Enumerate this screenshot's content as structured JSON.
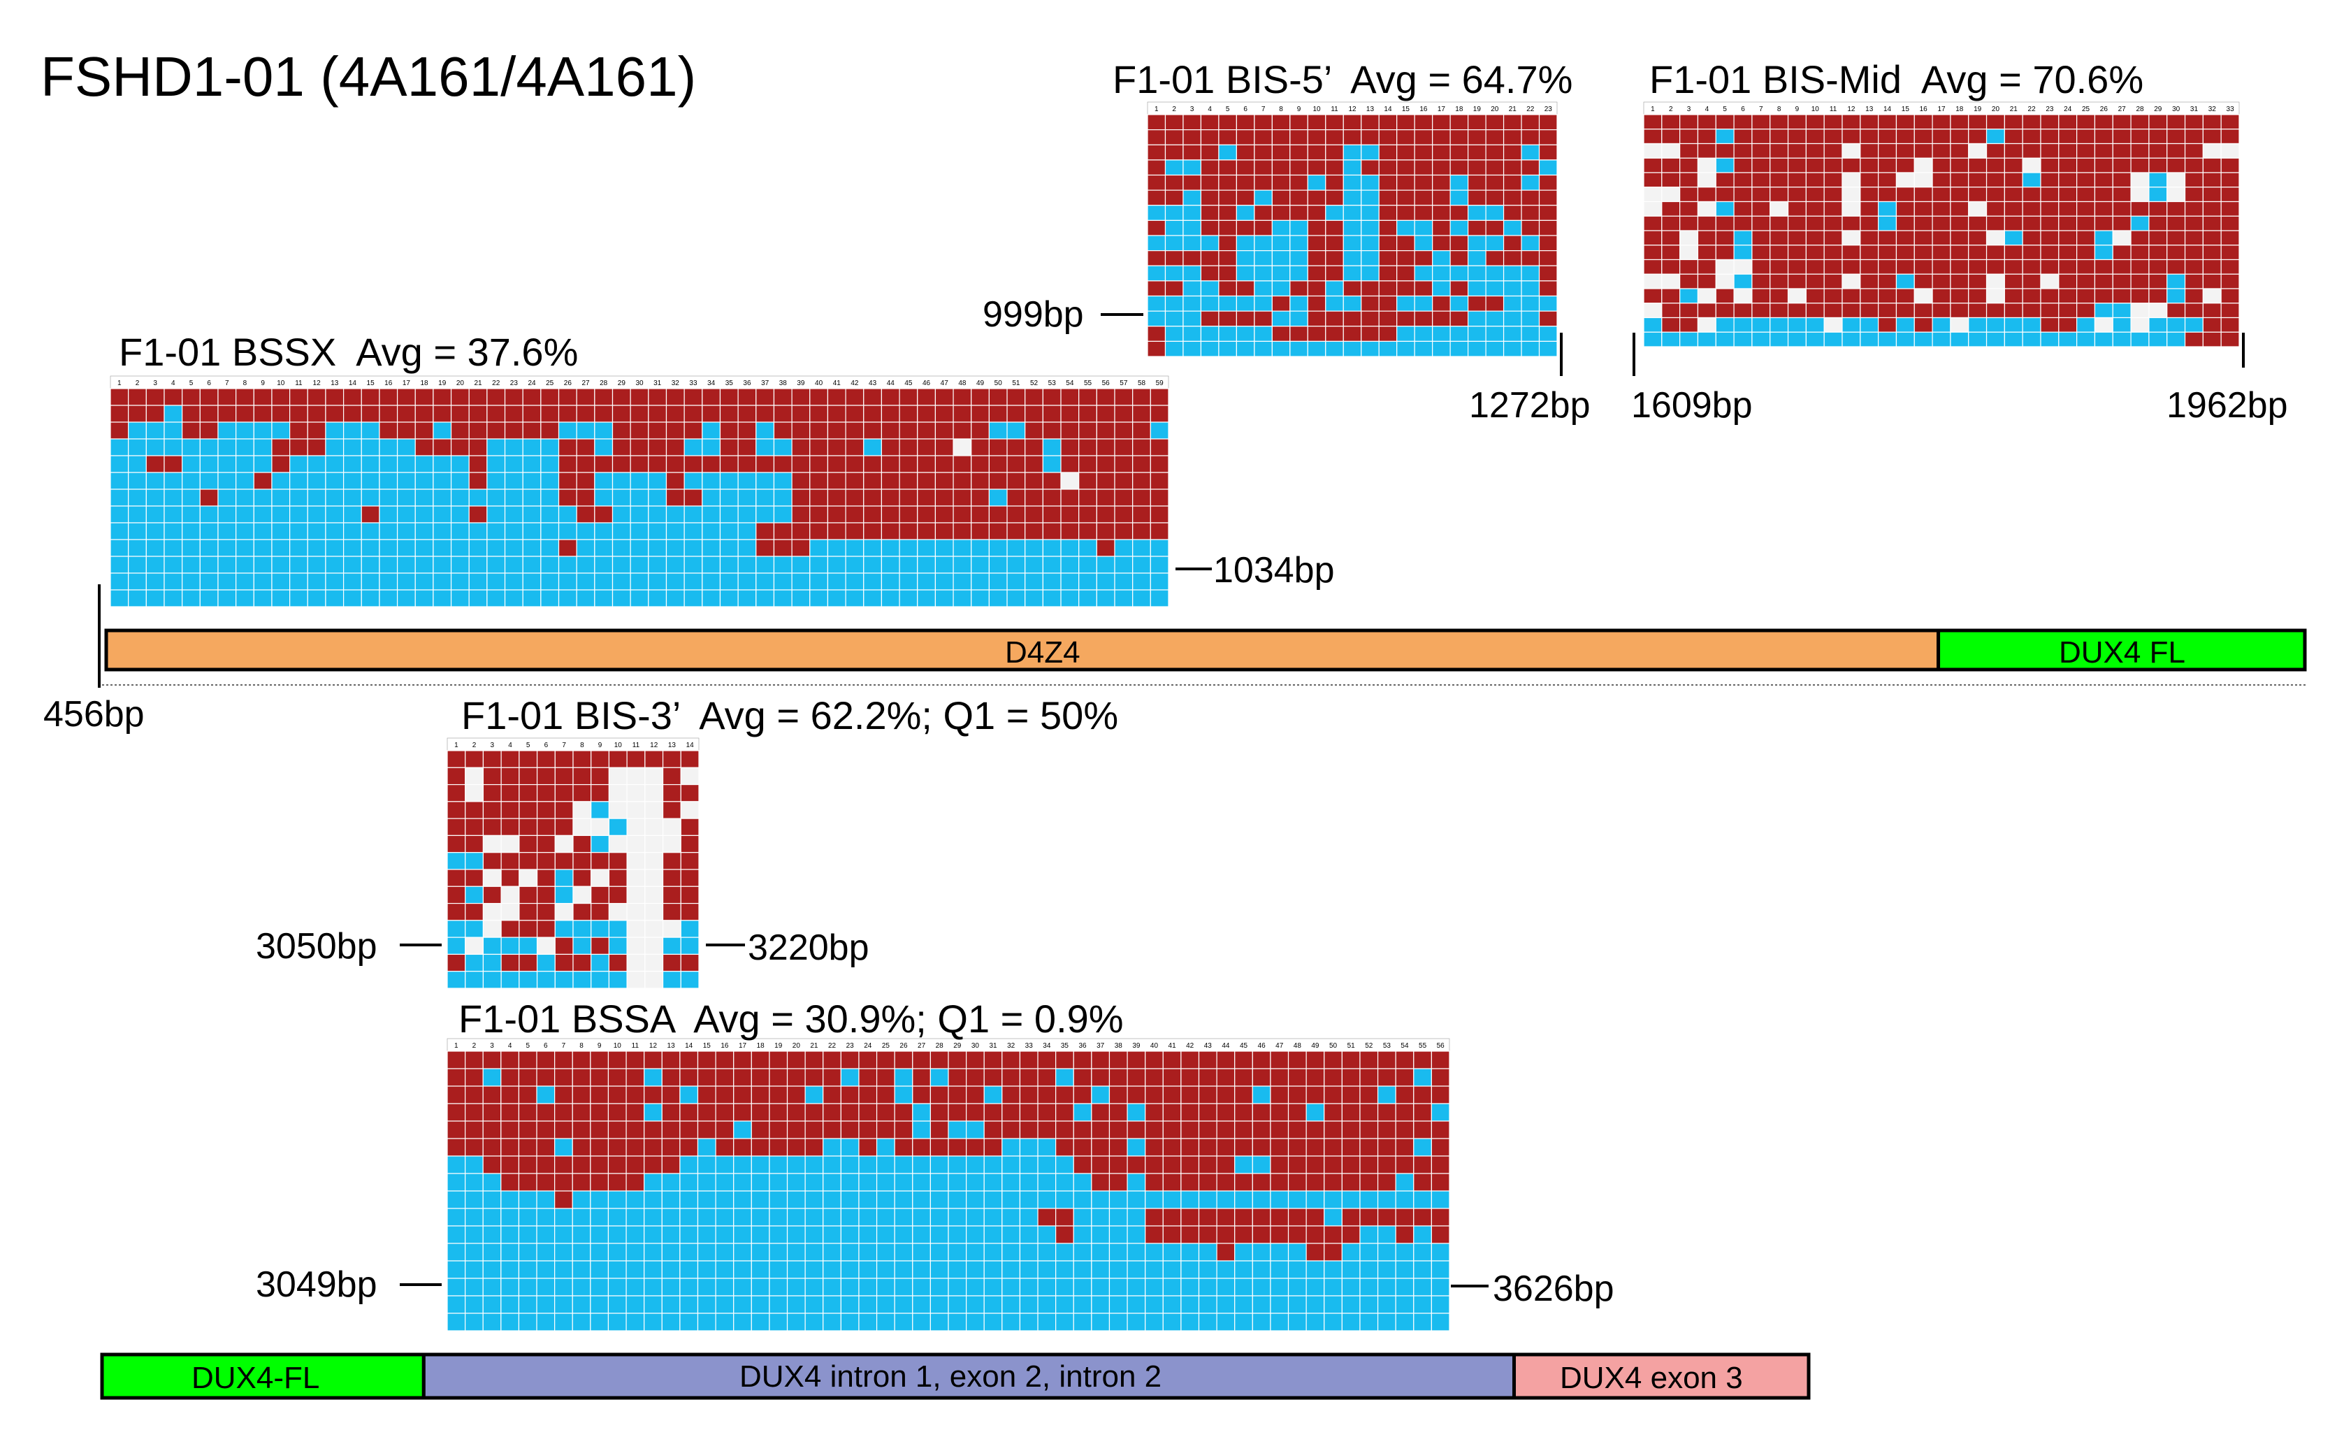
{
  "figure": {
    "title": "FSHD1-01 (4A161/4A161)",
    "colors": {
      "methylated": "#aa1e1e",
      "unmethylated": "#19bbef",
      "missing": "#f3f3f3",
      "grid": "#ffffff"
    }
  },
  "panels": [
    {
      "key": "bis5",
      "title": "F1-01 BIS-5’  Avg = 64.7%",
      "columns": 23,
      "rows": [
        "MMMMMMMMMMMMMMMMMMMMMMM",
        "MMMMMMMMMMMMMMMMMMMMMMM",
        "MMMMUMMMMMMUUMMMMMMMMUM",
        "MUUMMMMMMMMUMMMMMMMMMMU",
        "MMMMMMMMMUMUUMMMMUMMMUM",
        "MMUMMMUMMMMUUMMMMUMMMMM",
        "UUUMMUMMMMUUUMMMMMUUMMM",
        "MUUMMMMUUMMUUMUUMUMMUMM",
        "UUUUMUUUUMMUUMMUMMUUMUM",
        "MMMMMUUUUMMUUMMMUMUMMMM",
        "UUUMMUUUUMMUUMMUUUUUUUM",
        "MMUUMMUUMMUMMMMMUMUUUUM",
        "UUUUUUUMUMUUMMUUMUMMUUU",
        "UUUMMMMUUMMMMMMMMMUUUUM",
        "MUUUUUUMMMMMMMUUUUUUUUU",
        "MUUUUUUUUUUUUUUUUUUUUUU"
      ],
      "left_label": "999bp",
      "right_label": "1272bp"
    },
    {
      "key": "bismid",
      "title": "F1-01 BIS-Mid  Avg = 70.6%",
      "columns": 33,
      "rows": [
        "MMMMMMMMMMMMMMMMMMMMMMMMMMMMMMMMM",
        "MMMMUMMMMMMMMMMMMMMUMMMMMMMMMMMMM",
        "XXMMMMMMMMMXMMMMMMXMMMMMMMMMMMMXX",
        "MMMXUMMMMMMMMMMXMMMMMXMMMMMMMMMMM",
        "MMMXMMMMMMMXMMXXMMMMMUMMMMMXUXMMM",
        "XXMMMMMMMMMXMMMMMMMMMMMMMMMXUXMMM",
        "XMMXUMMXMMMXMUMMMMXMMMMMMMMMMMMMM",
        "MMMMMMMMMMMMMUMMMMMMMMMMMMMUMMMMM",
        "MMXMMUMMMMMXMMMMMMMXUMMMMUXMMMMMM",
        "MMXMMUMMMMMMMMMMMMMMMMMMMUMMMMMMM",
        "MMMMXXMMMMMMMMMMMMMMMMMMMMMMMMMMM",
        "XXMMXUMMMMMXMMUMMMMXMMXMMMMMMUMMM",
        "MMUXMXMMXMMMMMMXMMMXMMMMMMMMMUMXM",
        "XMMMMMMMMMMMMMMMMMMMMMMMMUUXXMMMM",
        "UMMXUUUUUUXUUMUMUXUUUUMMUXUXUUUMM",
        "UUUUUUUUUUUUUUUUUUUUUUUUUUUUUUMMM"
      ],
      "left_label": "1609bp",
      "right_label": "1962bp"
    },
    {
      "key": "bssx",
      "title": "F1-01 BSSX  Avg = 37.6%",
      "columns": 59,
      "rows": [
        "MMMMMMMMMMMMMMMMMMMMMMMMMMMMMMMMMMMMMMMMMMMMMMMMMMMMMMMMMMM",
        "MMMUMMMMMMMMMMMMMMMMMMMMMMMMMMMMMMMMMMMMMMMMMMMMMMMMMMMMMMM",
        "MUUUMMUUUUMMUUUMMMUMMMMMMUUUMMMMMUMMUMMMMMMMMMMMMUUMMMMMMMU",
        "UUUUUUUUUMMMUUUUUMMMMUUUUMMUMMMMUUMMUUMMMMUMMMMXMMMMUMMMMMM",
        "UUMMUUUUUMUUUUUUUUUUMUUUUMMMMMMMMMMMMMMMMMMMMMMMMMMMUMMMMMM",
        "UUUUUUUUMUUUUUUUUUUUMUUUUMMUUUUMUUUUUUMMMMMMMMMMMMMMMXMMMMM",
        "UUUUUMUUUUUUUUUUUUUUUUUUUMMUUUUMMUUUUUMMMMMMMMMMMUMMMMMMMMM",
        "UUUUUUUUUUUUUUMUUUUUMUUUUUMMUUUUUUUUUUMMMMMMMMMMMMMMMMMMMMM",
        "UUUUUUUUUUUUUUUUUUUUUUUUUUUUUUUUUUUUMMMMMMMMMMMMMMMMMMMMMMM",
        "UUUUUUUUUUUUUUUUUUUUUUUUUMUUUUUUUUUUMMMUUUUUUUUUUUUUUUUMUUU",
        "UUUUUUUUUUUUUUUUUUUUUUUUUUUUUUUUUUUUUUUUUUUUUUUUUUUUUUUUUUU",
        "UUUUUUUUUUUUUUUUUUUUUUUUUUUUUUUUUUUUUUUUUUUUUUUUUUUUUUUUUUU",
        "UUUUUUUUUUUUUUUUUUUUUUUUUUUUUUUUUUUUUUUUUUUUUUUUUUUUUUUUUUU"
      ],
      "left_label": "456bp",
      "right_label": "1034bp"
    },
    {
      "key": "bis3",
      "title": "F1-01 BIS-3’  Avg = 62.2%; Q1 = 50%",
      "columns": 14,
      "rows": [
        "MMMMMMMMMMMMMM",
        "MXMMMMMMMXXXMX",
        "MXMMMMMMMXXXMM",
        "MMMMMMMXUXXXMX",
        "MMMMMMMXXUXXXM",
        "MMXXMMXMUXXXXM",
        "UUMMMMMMMMXXMM",
        "MMXMXMUMXMXXMM",
        "MUMXMMUXMMXXMM",
        "MMXXMMXMMXXXMM",
        "UUXMMMUUUUXXXU",
        "UXUUUXMUMUXXUU",
        "MUUMMUMMUMXXMM",
        "UUUUUUUUUUXXUU"
      ],
      "left_label": "3050bp",
      "right_label": "3220bp"
    },
    {
      "key": "bssa",
      "title": "F1-01 BSSA  Avg = 30.9%; Q1 = 0.9%",
      "columns": 56,
      "rows": [
        "MMMMMMMMMMMMMMMMMMMMMMMMMMMMMMMMMMMMMMMMMMMMMMMMMMMMMMMM",
        "MMUMMMMMMMMUMMMMMMMMMMUMMUMUMMMMMMUMMMMMMMMMMMMMMMMMMMUM",
        "MMMMMUMMMMMMMUMMMMMMUMMMMUMMMMUMMMMMUMMMMMMMMUMMMMMMUMMM",
        "MMMMMMMMMMMUMMMMMMMMMMMMMMUMMMMMMMMUMMUMMMMMMMMMUMMMMMMU",
        "MMMMMMMMMMMMMMMMUMMMMMMMMMUMUUMMMMMMMMMMMMMMMMMMMMMMMMMM",
        "MMMMMMUMMMMMMMUMMMMMMUUMUMMMMMMUUUMMMMUMMMMMMMMMMMMMMMUM",
        "UUMMMMMMMMMMMUUUUUUUUUUUUUUUUUUUUUUMMMMMMMMMUUMMMMMMMMMM",
        "UUUMMMMMMMMUUUUUUUUUUUUUUUUUUUUUUUUUMMUMMMMMMMMMMMMMMUMM",
        "UUUUUUMUUUUUUUUUUUUUUUUUUUUUUUUUUUUUUUUUUUUUUUUUUUUUUUUU",
        "UUUUUUUUUUUUUUUUUUUUUUUUUUUUUUUUUMMUUUUMMMMMMMMMMUMMMMMM",
        "UUUUUUUUUUUUUUUUUUUUUUUUUUUUUUUUUUMUUUUMMMMMMMMMMMMUUMUM",
        "UUUUUUUUUUUUUUUUUUUUUUUUUUUUUUUUUUUUUUUUUUUMUUUUMMUUUUUU",
        "UUUUUUUUUUUUUUUUUUUUUUUUUUUUUUUUUUUUUUUUUUUUUUUUUUUUUUUU",
        "UUUUUUUUUUUUUUUUUUUUUUUUUUUUUUUUUUUUUUUUUUUUUUUUUUUUUUUU",
        "UUUUUUUUUUUUUUUUUUUUUUUUUUUUUUUUUUUUUUUUUUUUUUUUUUUUUUUU",
        "UUUUUUUUUUUUUUUUUUUUUUUUUUUUUUUUUUUUUUUUUUUUUUUUUUUUUUUU"
      ],
      "left_label": "3049bp",
      "right_label": "3626bp"
    }
  ],
  "tracks": [
    {
      "key": "top",
      "segments": [
        {
          "label": "D4Z4",
          "color": "#f5a85f",
          "fraction": 0.8333
        },
        {
          "label": "DUX4 FL",
          "color": "#00ff00",
          "fraction": 0.1667
        }
      ]
    },
    {
      "key": "bottom",
      "segments": [
        {
          "label": "DUX4-FL",
          "color": "#00ff00",
          "fraction": 0.1885
        },
        {
          "label": "DUX4 intron 1, exon 2, intron 2",
          "color": "#8b93cc",
          "fraction": 0.6389
        },
        {
          "label": "DUX4 exon 3",
          "color": "#f4a2a2",
          "fraction": 0.1726
        }
      ]
    }
  ]
}
